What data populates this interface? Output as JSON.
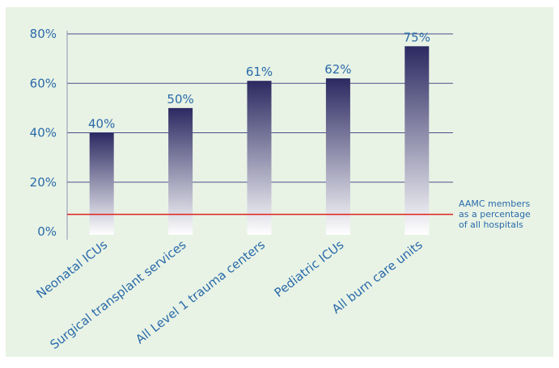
{
  "chart_data": {
    "type": "bar",
    "categories": [
      "Neonatal ICUs",
      "Surgical transplant services",
      "All Level 1 trauma centers",
      "Pediatric ICUs",
      "All burn care units"
    ],
    "values": [
      40,
      50,
      61,
      62,
      75
    ],
    "data_labels": [
      "40%",
      "50%",
      "61%",
      "62%",
      "75%"
    ],
    "ylim": [
      0,
      80
    ],
    "y_ticks": [
      0,
      20,
      40,
      60,
      80
    ],
    "y_tick_labels": [
      "0%",
      "20%",
      "40%",
      "60%",
      "80%"
    ],
    "grid": true,
    "reference_line": {
      "value": 7,
      "label_lines": [
        "AAMC members",
        "as a percentage",
        "of all hospitals"
      ],
      "color": "#e0201f"
    },
    "colors": {
      "bar_top": "#2b2961",
      "bar_bottom": "#ffffff",
      "gridline": "#4a4f8c",
      "text": "#2a6aa9",
      "background": "#e8f3e5"
    }
  }
}
